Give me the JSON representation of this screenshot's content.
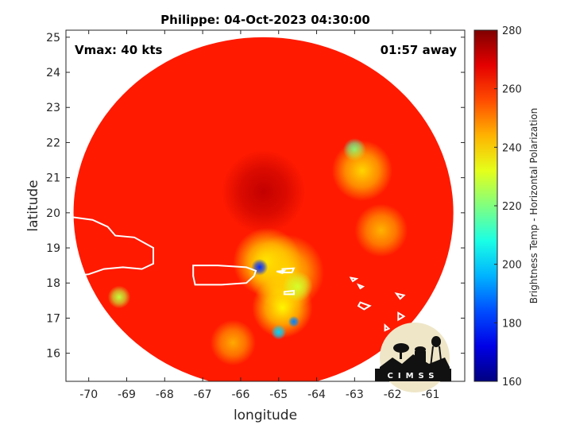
{
  "chart_data": {
    "type": "heatmap",
    "title": "Philippe: 04-Oct-2023 04:30:00",
    "xlabel": "longitude",
    "ylabel": "latitude",
    "xlim": [
      -70.6,
      -60.1
    ],
    "ylim": [
      15.2,
      25.2
    ],
    "xticks": [
      -70,
      -69,
      -68,
      -67,
      -66,
      -65,
      -64,
      -63,
      -62,
      -61
    ],
    "yticks": [
      16,
      17,
      18,
      19,
      20,
      21,
      22,
      23,
      24,
      25
    ],
    "annotations": {
      "vmax": "Vmax: 40 kts",
      "time_offset": "01:57 away"
    },
    "colorbar": {
      "label": "Brightness Temp - Horizontal Polarization",
      "range": [
        160,
        280
      ],
      "ticks": [
        160,
        180,
        200,
        220,
        240,
        260,
        280
      ],
      "colormap": "jet"
    },
    "swath": {
      "center": [
        -65.4,
        20.0
      ],
      "radius_lon": 5.0,
      "radius_lat": 5.0
    },
    "background_value": 262,
    "features": [
      {
        "lon": -65.4,
        "lat": 20.6,
        "value": 272,
        "r": 1.1
      },
      {
        "lon": -65.3,
        "lat": 18.6,
        "value": 236,
        "r": 0.9
      },
      {
        "lon": -64.8,
        "lat": 18.3,
        "value": 240,
        "r": 1.0
      },
      {
        "lon": -65.5,
        "lat": 18.45,
        "value": 180,
        "r": 0.22
      },
      {
        "lon": -64.9,
        "lat": 17.3,
        "value": 236,
        "r": 0.8
      },
      {
        "lon": -64.6,
        "lat": 16.9,
        "value": 190,
        "r": 0.15
      },
      {
        "lon": -65.0,
        "lat": 16.6,
        "value": 200,
        "r": 0.2
      },
      {
        "lon": -63.0,
        "lat": 21.8,
        "value": 215,
        "r": 0.3
      },
      {
        "lon": -62.8,
        "lat": 21.2,
        "value": 240,
        "r": 0.8
      },
      {
        "lon": -62.3,
        "lat": 19.5,
        "value": 244,
        "r": 0.7
      },
      {
        "lon": -64.5,
        "lat": 17.9,
        "value": 230,
        "r": 0.4
      },
      {
        "lon": -69.2,
        "lat": 17.6,
        "value": 228,
        "r": 0.3
      },
      {
        "lon": -66.2,
        "lat": 16.3,
        "value": 245,
        "r": 0.6
      }
    ],
    "islands": [
      [
        [
          -70.6,
          19.9
        ],
        [
          -69.9,
          19.8
        ],
        [
          -69.5,
          19.6
        ],
        [
          -69.3,
          19.35
        ],
        [
          -68.8,
          19.3
        ],
        [
          -68.3,
          19.0
        ],
        [
          -68.3,
          18.55
        ],
        [
          -68.6,
          18.4
        ],
        [
          -69.1,
          18.45
        ],
        [
          -69.6,
          18.4
        ],
        [
          -70.0,
          18.25
        ],
        [
          -70.4,
          18.2
        ],
        [
          -70.6,
          18.3
        ]
      ],
      [
        [
          -67.25,
          18.5
        ],
        [
          -66.6,
          18.5
        ],
        [
          -65.85,
          18.45
        ],
        [
          -65.6,
          18.35
        ],
        [
          -65.65,
          18.2
        ],
        [
          -65.85,
          18.0
        ],
        [
          -66.5,
          17.95
        ],
        [
          -67.2,
          17.95
        ],
        [
          -67.25,
          18.2
        ]
      ],
      [
        [
          -64.9,
          18.4
        ],
        [
          -64.6,
          18.42
        ],
        [
          -64.65,
          18.3
        ],
        [
          -64.9,
          18.3
        ]
      ],
      [
        [
          -65.05,
          18.33
        ],
        [
          -64.85,
          18.35
        ],
        [
          -64.9,
          18.28
        ]
      ],
      [
        [
          -64.85,
          17.75
        ],
        [
          -64.6,
          17.78
        ],
        [
          -64.6,
          17.68
        ],
        [
          -64.85,
          17.68
        ]
      ],
      [
        [
          -63.1,
          18.15
        ],
        [
          -62.95,
          18.12
        ],
        [
          -63.05,
          18.05
        ]
      ],
      [
        [
          -62.9,
          17.95
        ],
        [
          -62.78,
          17.9
        ],
        [
          -62.85,
          17.85
        ]
      ],
      [
        [
          -62.85,
          17.45
        ],
        [
          -62.6,
          17.35
        ],
        [
          -62.75,
          17.25
        ],
        [
          -62.9,
          17.35
        ]
      ],
      [
        [
          -61.9,
          17.7
        ],
        [
          -61.7,
          17.65
        ],
        [
          -61.8,
          17.55
        ]
      ],
      [
        [
          -61.85,
          17.15
        ],
        [
          -61.7,
          17.05
        ],
        [
          -61.85,
          16.95
        ]
      ],
      [
        [
          -62.2,
          16.8
        ],
        [
          -62.1,
          16.7
        ],
        [
          -62.2,
          16.65
        ]
      ],
      [
        [
          -61.8,
          16.35
        ],
        [
          -61.5,
          16.4
        ],
        [
          -61.35,
          16.1
        ],
        [
          -61.6,
          15.95
        ],
        [
          -61.8,
          16.1
        ]
      ]
    ]
  }
}
